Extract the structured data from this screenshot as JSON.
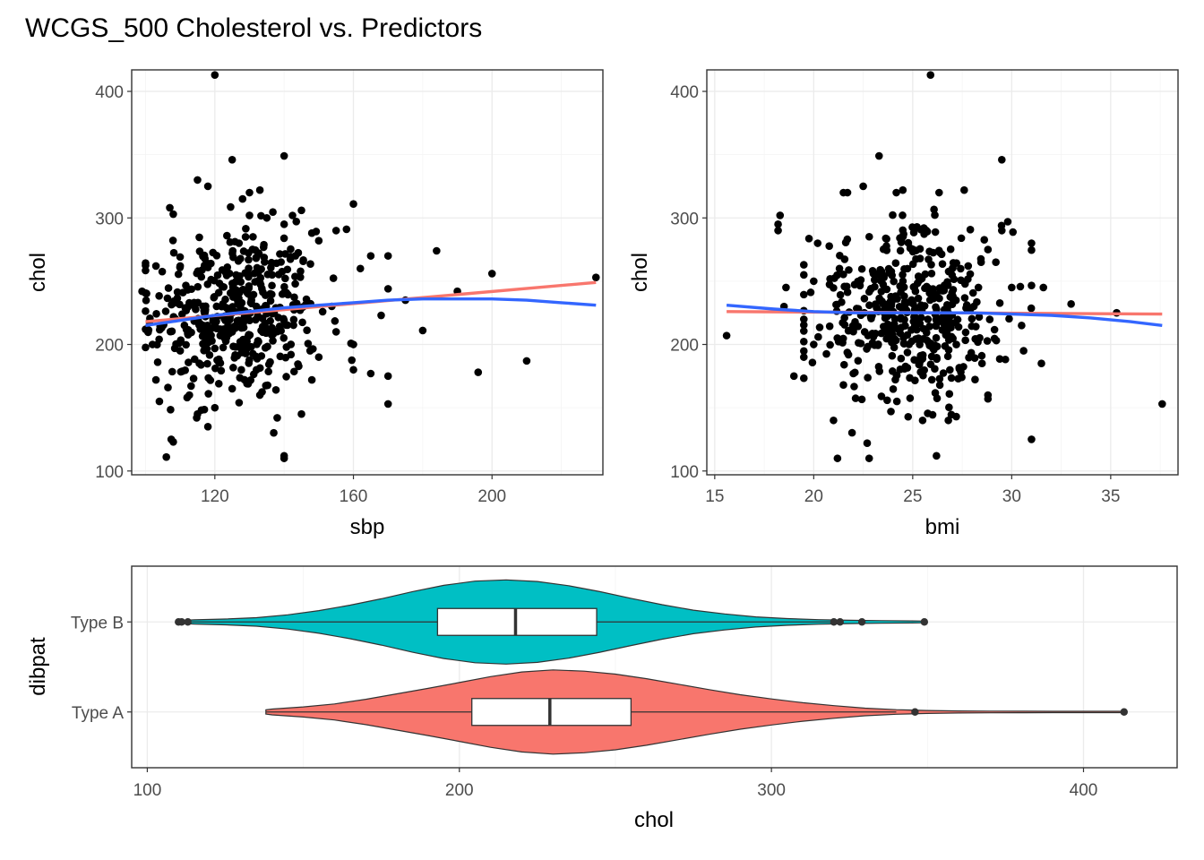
{
  "figure": {
    "title": "WCGS_500 Cholesterol vs. Predictors"
  },
  "chart_data": [
    {
      "type": "scatter",
      "xlabel": "sbp",
      "ylabel": "chol",
      "xlim": [
        96,
        232
      ],
      "ylim": [
        97,
        417
      ],
      "x_ticks": [
        120,
        160,
        200
      ],
      "y_ticks": [
        100,
        200,
        300,
        400
      ],
      "grid": true,
      "theme": "bw",
      "points_color": "#000000",
      "outlier_points": [
        [
          120,
          413
        ],
        [
          125,
          346
        ],
        [
          140,
          349
        ],
        [
          133,
          322
        ],
        [
          160,
          311
        ],
        [
          107,
          308
        ],
        [
          130,
          302
        ],
        [
          155,
          290
        ],
        [
          158,
          291
        ],
        [
          165,
          270
        ],
        [
          170,
          270
        ],
        [
          148,
          288
        ],
        [
          184,
          274
        ],
        [
          200,
          256
        ],
        [
          230,
          253
        ],
        [
          150,
          282
        ],
        [
          162,
          260
        ],
        [
          145,
          306
        ],
        [
          108,
          303
        ],
        [
          103,
          262
        ],
        [
          99,
          242
        ],
        [
          170,
          244
        ],
        [
          180,
          211
        ],
        [
          190,
          242
        ],
        [
          196,
          178
        ],
        [
          210,
          187
        ],
        [
          165,
          177
        ],
        [
          170,
          175
        ],
        [
          170,
          153
        ],
        [
          160,
          180
        ],
        [
          145,
          145
        ],
        [
          140,
          112
        ],
        [
          140,
          110
        ],
        [
          106,
          111
        ],
        [
          108,
          123
        ],
        [
          118,
          135
        ],
        [
          138,
          142
        ],
        [
          112,
          158
        ],
        [
          104,
          155
        ],
        [
          103,
          172
        ],
        [
          110,
          195
        ],
        [
          150,
          190
        ],
        [
          130,
          320
        ],
        [
          128,
          315
        ],
        [
          115,
          330
        ],
        [
          118,
          325
        ],
        [
          135,
          300
        ],
        [
          140,
          295
        ],
        [
          175,
          235
        ],
        [
          168,
          223
        ],
        [
          160,
          200
        ],
        [
          155,
          210
        ],
        [
          148,
          172
        ],
        [
          120,
          150
        ],
        [
          127,
          154
        ],
        [
          115,
          145
        ],
        [
          125,
          165
        ],
        [
          133,
          160
        ],
        [
          102,
          200
        ],
        [
          110,
          262
        ]
      ],
      "cloud": {
        "count": 440,
        "x_center": 126,
        "x_spread": 12,
        "x_min": 100,
        "x_max": 160,
        "y_center": 225,
        "y_spread": 33,
        "y_min": 125,
        "y_max": 320
      },
      "series": [
        {
          "fit": "linear",
          "color": "#F8766D",
          "x": [
            100,
            230
          ],
          "y": [
            218,
            249
          ]
        },
        {
          "fit": "loess",
          "color": "#3366FF",
          "x": [
            100,
            110,
            120,
            130,
            140,
            150,
            160,
            170,
            180,
            190,
            200,
            210,
            220,
            230
          ],
          "y": [
            215,
            219,
            223,
            226,
            229,
            231,
            233,
            235,
            236,
            236,
            236,
            235,
            233,
            231
          ]
        }
      ]
    },
    {
      "type": "scatter",
      "xlabel": "bmi",
      "ylabel": "chol",
      "xlim": [
        14.6,
        38.4
      ],
      "ylim": [
        97,
        417
      ],
      "x_ticks": [
        15,
        20,
        25,
        30,
        35
      ],
      "y_ticks": [
        100,
        200,
        300,
        400
      ],
      "grid": true,
      "theme": "bw",
      "points_color": "#000000",
      "outlier_points": [
        [
          25.9,
          413
        ],
        [
          23.3,
          349
        ],
        [
          29.5,
          346
        ],
        [
          24.5,
          322
        ],
        [
          27.6,
          322
        ],
        [
          22.5,
          325
        ],
        [
          21.5,
          320
        ],
        [
          18.3,
          302
        ],
        [
          18.2,
          295
        ],
        [
          18.2,
          290
        ],
        [
          15.6,
          207
        ],
        [
          37.6,
          153
        ],
        [
          35.3,
          225
        ],
        [
          33.0,
          232
        ],
        [
          31.6,
          245
        ],
        [
          31.5,
          185
        ],
        [
          30.5,
          215
        ],
        [
          30.6,
          195
        ],
        [
          31.0,
          280
        ],
        [
          29.8,
          297
        ],
        [
          29.5,
          290
        ],
        [
          28.8,
          160
        ],
        [
          28.8,
          157
        ],
        [
          27.3,
          173
        ],
        [
          26.2,
          112
        ],
        [
          22.7,
          122
        ],
        [
          22.8,
          110
        ],
        [
          21.2,
          110
        ],
        [
          21.0,
          140
        ],
        [
          23.9,
          147
        ],
        [
          24.2,
          155
        ],
        [
          27.2,
          143
        ],
        [
          20.0,
          200
        ],
        [
          19.5,
          190
        ],
        [
          19.0,
          175
        ],
        [
          18.5,
          230
        ],
        [
          18.6,
          245
        ],
        [
          19.5,
          255
        ],
        [
          20.2,
          280
        ],
        [
          21.3,
          260
        ],
        [
          30.0,
          245
        ],
        [
          29.2,
          265
        ],
        [
          28.5,
          185
        ],
        [
          26.8,
          140
        ],
        [
          25.5,
          140
        ],
        [
          22.0,
          177
        ],
        [
          21.5,
          168
        ],
        [
          28.8,
          275
        ],
        [
          27.0,
          260
        ],
        [
          20.0,
          250
        ]
      ],
      "cloud": {
        "count": 450,
        "x_center": 24.8,
        "x_spread": 2.4,
        "x_min": 19.5,
        "x_max": 31,
        "y_center": 225,
        "y_spread": 33,
        "y_min": 125,
        "y_max": 320
      },
      "series": [
        {
          "fit": "linear",
          "color": "#F8766D",
          "x": [
            15.6,
            37.6
          ],
          "y": [
            226,
            224
          ]
        },
        {
          "fit": "loess",
          "color": "#3366FF",
          "x": [
            15.6,
            18,
            20,
            22,
            24,
            26,
            28,
            30,
            32,
            34,
            36,
            37.6
          ],
          "y": [
            231,
            228,
            226,
            225,
            225,
            225,
            225,
            224,
            223,
            221,
            218,
            215
          ]
        }
      ]
    },
    {
      "type": "violin",
      "xlabel": "chol",
      "ylabel": "dibpat",
      "xlim": [
        95,
        430
      ],
      "x_ticks": [
        100,
        200,
        300,
        400
      ],
      "categories": [
        "Type A",
        "Type B"
      ],
      "grid": true,
      "theme": "bw",
      "groups": [
        {
          "name": "Type A",
          "fill": "#F8766D",
          "boxplot": {
            "q1": 204,
            "median": 229,
            "q3": 255,
            "whisker_low": 138,
            "whisker_high": 340
          },
          "outliers": [
            346,
            413
          ],
          "density_x": [
            138,
            140,
            150,
            160,
            170,
            180,
            190,
            200,
            210,
            220,
            230,
            240,
            250,
            260,
            270,
            280,
            290,
            300,
            310,
            320,
            330,
            340,
            350,
            360,
            370,
            380,
            390,
            400,
            413
          ],
          "density_w": [
            0.05,
            0.07,
            0.12,
            0.19,
            0.3,
            0.43,
            0.56,
            0.7,
            0.84,
            0.95,
            1.0,
            0.97,
            0.9,
            0.79,
            0.66,
            0.53,
            0.41,
            0.31,
            0.22,
            0.15,
            0.09,
            0.055,
            0.035,
            0.025,
            0.02,
            0.018,
            0.016,
            0.015,
            0.015
          ]
        },
        {
          "name": "Type B",
          "fill": "#00BFC4",
          "boxplot": {
            "q1": 193,
            "median": 218,
            "q3": 244,
            "whisker_low": 110,
            "whisker_high": 320
          },
          "outliers": [
            110,
            111,
            113,
            320,
            322,
            329,
            349
          ],
          "density_x": [
            110,
            115,
            125,
            135,
            145,
            155,
            165,
            175,
            185,
            195,
            205,
            215,
            225,
            235,
            245,
            255,
            265,
            275,
            285,
            295,
            305,
            315,
            325,
            335,
            345,
            349
          ],
          "density_w": [
            0.03,
            0.05,
            0.07,
            0.1,
            0.17,
            0.27,
            0.4,
            0.55,
            0.72,
            0.87,
            0.97,
            1.0,
            0.96,
            0.86,
            0.72,
            0.56,
            0.41,
            0.28,
            0.19,
            0.12,
            0.08,
            0.055,
            0.04,
            0.03,
            0.025,
            0.02
          ]
        }
      ]
    }
  ]
}
